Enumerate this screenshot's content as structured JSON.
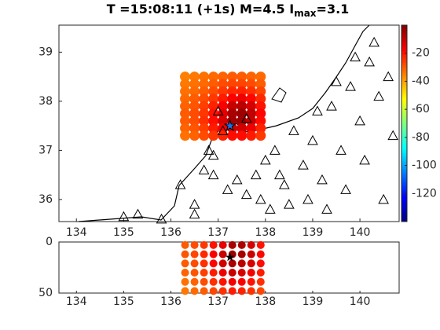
{
  "chart_data": {
    "type": "intensity-map",
    "title": "T =15:08:11 (+1s) M=4.5 I",
    "title_sub": "max",
    "title_end": "=3.1",
    "xlim": [
      133.63,
      140.83
    ],
    "xticks": [
      134,
      135,
      136,
      137,
      138,
      139,
      140
    ],
    "ylim": [
      35.55,
      39.55
    ],
    "yticks": [
      36,
      37,
      38,
      39
    ],
    "clim": [
      -140,
      0
    ],
    "cticks": [
      -20,
      -40,
      -60,
      -80,
      -100,
      -120
    ],
    "grid_lon": [
      136.3,
      136.5,
      136.7,
      136.9,
      137.1,
      137.3,
      137.5,
      137.7,
      137.9
    ],
    "grid_lat": [
      38.5,
      38.35,
      38.2,
      38.05,
      37.9,
      37.75,
      37.6,
      37.45,
      37.3
    ],
    "grid_values": [
      [
        -35,
        -34,
        -33,
        -32,
        -31,
        -30,
        -30,
        -31,
        -32
      ],
      [
        -34,
        -33,
        -32,
        -30,
        -28,
        -27,
        -27,
        -28,
        -30
      ],
      [
        -33,
        -32,
        -30,
        -28,
        -25,
        -23,
        -22,
        -24,
        -27
      ],
      [
        -32,
        -30,
        -28,
        -25,
        -21,
        -17,
        -15,
        -18,
        -23
      ],
      [
        -31,
        -29,
        -26,
        -22,
        -17,
        -10,
        -8,
        -12,
        -20
      ],
      [
        -30,
        -28,
        -25,
        -20,
        -14,
        -6,
        -4,
        -9,
        -18
      ],
      [
        -30,
        -28,
        -24,
        -19,
        -12,
        -5,
        -4,
        -10,
        -19
      ],
      [
        -31,
        -29,
        -26,
        -21,
        -16,
        -10,
        -11,
        -15,
        -22
      ],
      [
        -33,
        -31,
        -28,
        -25,
        -22,
        -19,
        -19,
        -21,
        -25
      ]
    ],
    "stations_lon": [
      135.0,
      135.3,
      135.8,
      136.2,
      136.5,
      136.7,
      136.8,
      136.9,
      137.0,
      137.2,
      137.4,
      137.6,
      137.8,
      138.0,
      138.2,
      138.4,
      138.6,
      138.8,
      139.0,
      139.2,
      139.4,
      139.6,
      139.8,
      140.0,
      140.2,
      140.4,
      140.6,
      138.5,
      138.9,
      139.3,
      139.7,
      140.1,
      140.5,
      139.1,
      139.5,
      139.9,
      140.3,
      140.7,
      138.1,
      138.3,
      137.9,
      136.9,
      137.1,
      136.5,
      137.6
    ],
    "stations_lat": [
      35.65,
      35.7,
      35.6,
      36.3,
      35.9,
      36.6,
      37.0,
      36.5,
      37.8,
      36.2,
      36.4,
      36.1,
      36.5,
      36.8,
      37.0,
      36.3,
      37.4,
      36.7,
      37.2,
      36.4,
      37.9,
      37.0,
      38.3,
      37.6,
      38.8,
      38.1,
      38.5,
      35.9,
      36.0,
      35.8,
      36.2,
      36.8,
      36.0,
      37.8,
      38.4,
      38.9,
      39.2,
      37.3,
      35.8,
      36.5,
      36.0,
      36.9,
      37.4,
      35.7,
      37.65
    ],
    "depth_lim": [
      0,
      50
    ],
    "depth_ticks": [
      0,
      50
    ],
    "depth_levels": [
      3,
      12,
      21,
      30,
      39,
      48
    ],
    "depth_values": [
      [
        -30,
        -28,
        -25,
        -20,
        -14,
        -6,
        -6,
        -12,
        -20
      ],
      [
        -29,
        -27,
        -23,
        -17,
        -10,
        -4,
        -5,
        -10,
        -18
      ],
      [
        -30,
        -28,
        -24,
        -18,
        -11,
        -6,
        -8,
        -12,
        -19
      ],
      [
        -31,
        -29,
        -26,
        -21,
        -15,
        -10,
        -12,
        -16,
        -21
      ],
      [
        -33,
        -31,
        -28,
        -24,
        -20,
        -16,
        -17,
        -20,
        -24
      ],
      [
        -34,
        -32,
        -30,
        -27,
        -24,
        -21,
        -22,
        -24,
        -27
      ]
    ],
    "epicenter": {
      "lon": 137.25,
      "lat": 37.5,
      "depth": 15
    }
  }
}
